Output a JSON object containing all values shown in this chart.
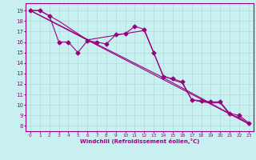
{
  "xlabel": "Windchill (Refroidissement éolien,°C)",
  "bg_color": "#c8f0f0",
  "line_color": "#9b0080",
  "grid_color": "#b0d8d8",
  "x_ticks": [
    0,
    1,
    2,
    3,
    4,
    5,
    6,
    7,
    8,
    9,
    10,
    11,
    12,
    13,
    14,
    15,
    16,
    17,
    18,
    19,
    20,
    21,
    22,
    23
  ],
  "y_ticks": [
    8,
    9,
    10,
    11,
    12,
    13,
    14,
    15,
    16,
    17,
    18,
    19
  ],
  "ylim": [
    7.5,
    19.7
  ],
  "xlim": [
    -0.5,
    23.5
  ],
  "line1_x": [
    0,
    1,
    2,
    3,
    4,
    5,
    6,
    7,
    8,
    9,
    10,
    11,
    12,
    13,
    14,
    15,
    16,
    17,
    18,
    19,
    20,
    21,
    22,
    23
  ],
  "line1_y": [
    19,
    19,
    18.5,
    16,
    16,
    15,
    16.1,
    16,
    15.8,
    16.7,
    16.8,
    17.5,
    17.2,
    15,
    12.7,
    12.5,
    12.2,
    10.5,
    10.4,
    10.3,
    10.3,
    9.2,
    9.0,
    8.3
  ],
  "line2_x": [
    0,
    1,
    3,
    6,
    12,
    14,
    15,
    16,
    17,
    18,
    19,
    20,
    21,
    22,
    23
  ],
  "line2_y": [
    19,
    19,
    18,
    16.2,
    17.1,
    12.8,
    12.4,
    12.1,
    10.5,
    10.3,
    10.2,
    10.2,
    9.1,
    8.8,
    8.2
  ],
  "line3_x": [
    0,
    23
  ],
  "line3_y": [
    19,
    8.2
  ],
  "line4_x": [
    0,
    14,
    23
  ],
  "line4_y": [
    19,
    12.6,
    8.2
  ],
  "marker": "D",
  "markersize": 2.5,
  "linewidth": 0.8
}
